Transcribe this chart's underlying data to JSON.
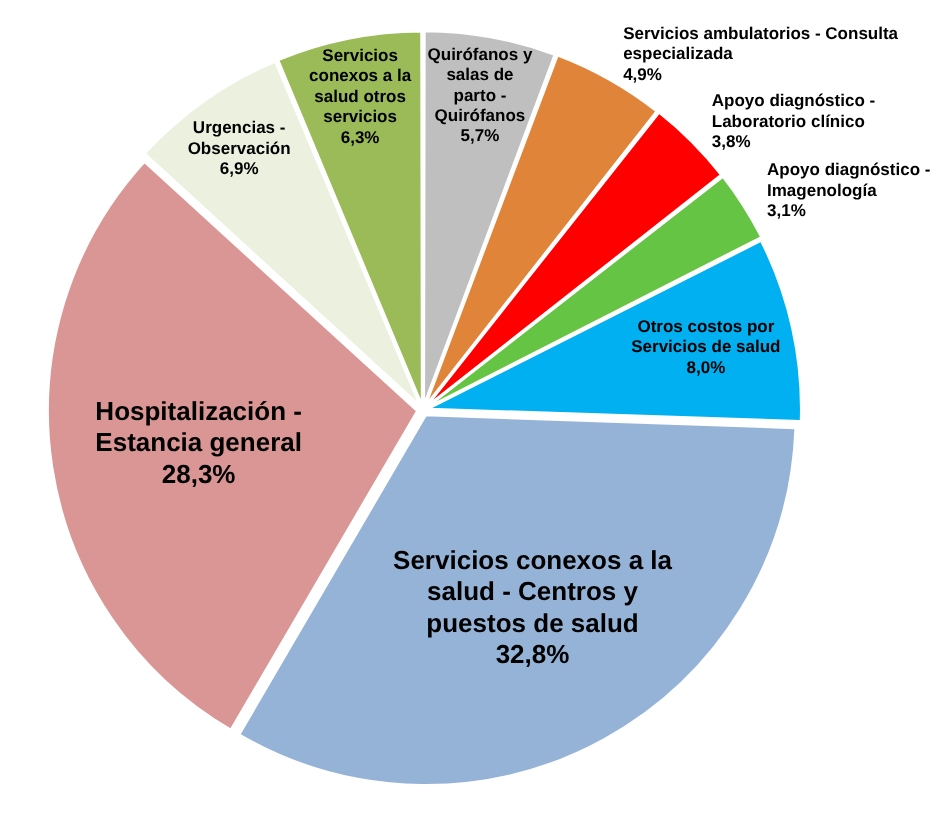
{
  "chart_data": {
    "type": "pie",
    "categories": [
      "Quirófanos y salas de parto - Quirófanos",
      "Servicios ambulatorios - Consulta especializada",
      "Apoyo diagnóstico - Laboratorio clínico",
      "Apoyo diagnóstico - Imagenología",
      "Otros costos por Servicios de salud",
      "Servicios conexos a la salud - Centros y puestos de salud",
      "Hospitalización - Estancia general",
      "Urgencias - Observación",
      "Servicios conexos a la salud otros servicios"
    ],
    "values": [
      5.7,
      4.9,
      3.8,
      3.1,
      8.0,
      32.8,
      28.3,
      6.9,
      6.3
    ],
    "value_labels": [
      "5,7%",
      "4,9%",
      "3,8%",
      "3,1%",
      "8,0%",
      "32,8%",
      "28,3%",
      "6,9%",
      "6,3%"
    ],
    "colors": [
      "#bfbfbf",
      "#e0843a",
      "#ff0000",
      "#66c444",
      "#00b0f0",
      "#95b3d7",
      "#d99694",
      "#ebf1de",
      "#9bbb59"
    ]
  }
}
